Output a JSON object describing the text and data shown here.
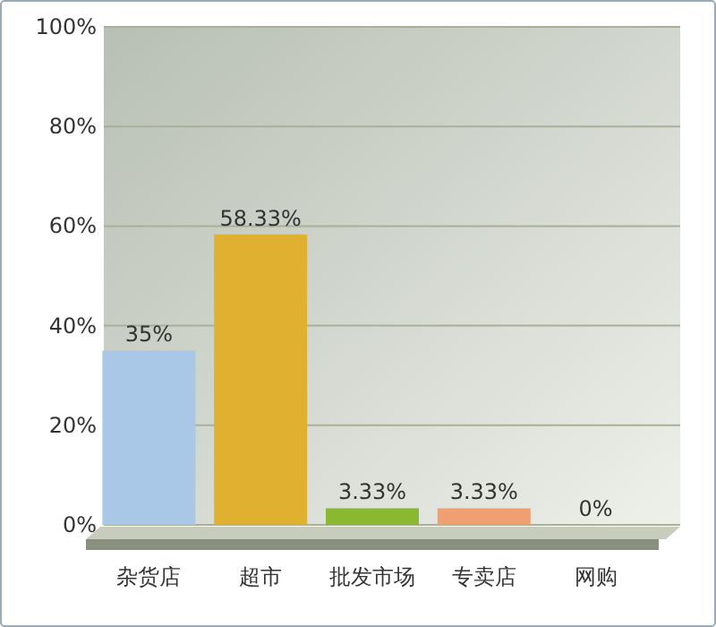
{
  "chart_data": {
    "type": "bar",
    "categories": [
      "杂货店",
      "超市",
      "批发市场",
      "专卖店",
      "网购"
    ],
    "values": [
      35,
      58.33,
      3.33,
      3.33,
      0
    ],
    "colors": [
      "#a9c8e8",
      "#e0b030",
      "#8ab830",
      "#f0a070",
      "#40a8b0"
    ],
    "value_labels": [
      "35%",
      "58.33%",
      "3.33%",
      "3.33%",
      "0%"
    ],
    "ylim": [
      0,
      100
    ],
    "yticks": [
      {
        "value": 0,
        "label": "0%"
      },
      {
        "value": 20,
        "label": "20%"
      },
      {
        "value": 40,
        "label": "40%"
      },
      {
        "value": 60,
        "label": "60%"
      },
      {
        "value": 80,
        "label": "80%"
      },
      {
        "value": 100,
        "label": "100%"
      }
    ],
    "grid": "y"
  }
}
